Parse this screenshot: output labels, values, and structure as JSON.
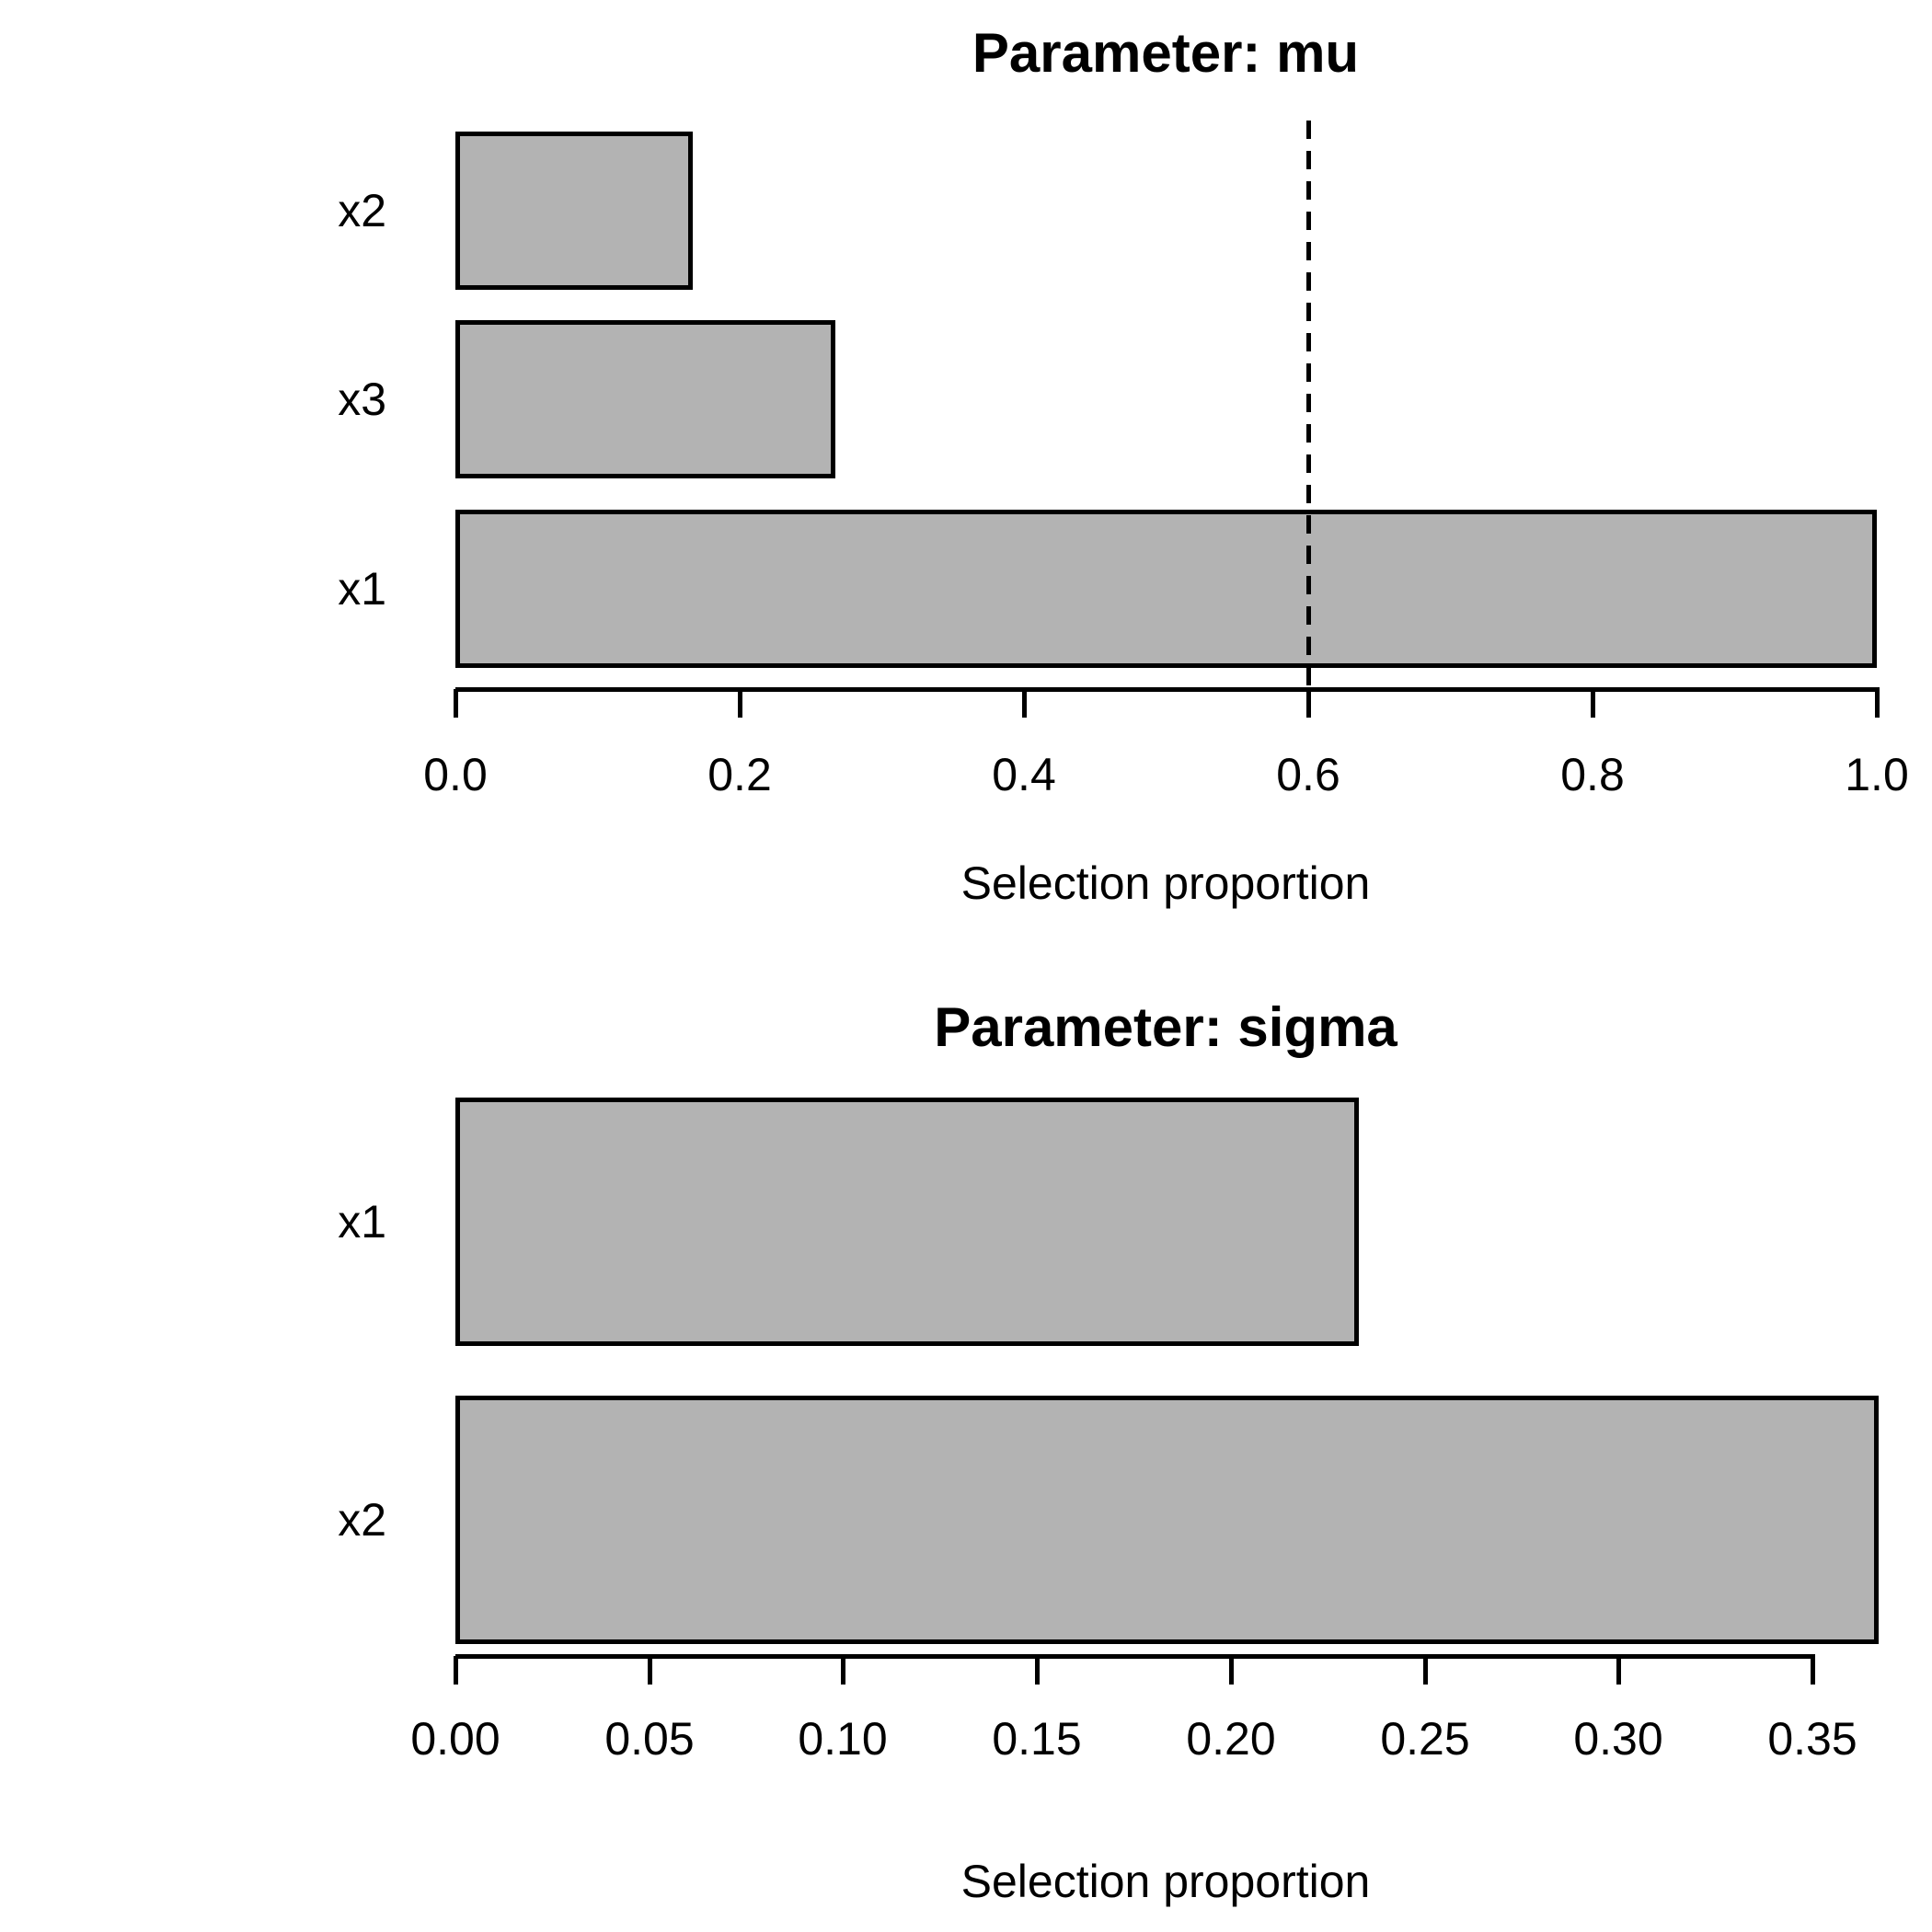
{
  "figure": {
    "background": "#ffffff",
    "bar_fill": "#b3b3b3",
    "bar_border": "#000000",
    "text_color": "#000000"
  },
  "chart_data": [
    {
      "type": "bar",
      "orientation": "horizontal",
      "title": "Parameter: mu",
      "xlabel": "Selection proportion",
      "categories": [
        "x2",
        "x3",
        "x1"
      ],
      "values": [
        0.167,
        0.267,
        1.0
      ],
      "xlim": [
        0,
        1.0
      ],
      "xticks": [
        0.0,
        0.2,
        0.4,
        0.6,
        0.8,
        1.0
      ],
      "xtick_labels": [
        "0.0",
        "0.2",
        "0.4",
        "0.6",
        "0.8",
        "1.0"
      ],
      "grid": false,
      "legend": false,
      "reference_line": {
        "value": 0.6,
        "style": "dashed",
        "color": "#000000"
      }
    },
    {
      "type": "bar",
      "orientation": "horizontal",
      "title": "Parameter: sigma",
      "xlabel": "Selection proportion",
      "categories": [
        "x1",
        "x2"
      ],
      "values": [
        0.233,
        0.367
      ],
      "xlim": [
        0,
        0.367
      ],
      "xticks": [
        0.0,
        0.05,
        0.1,
        0.15,
        0.2,
        0.25,
        0.3,
        0.35
      ],
      "xtick_labels": [
        "0.00",
        "0.05",
        "0.10",
        "0.15",
        "0.20",
        "0.25",
        "0.30",
        "0.35"
      ],
      "grid": false,
      "legend": false,
      "reference_line": null
    }
  ]
}
